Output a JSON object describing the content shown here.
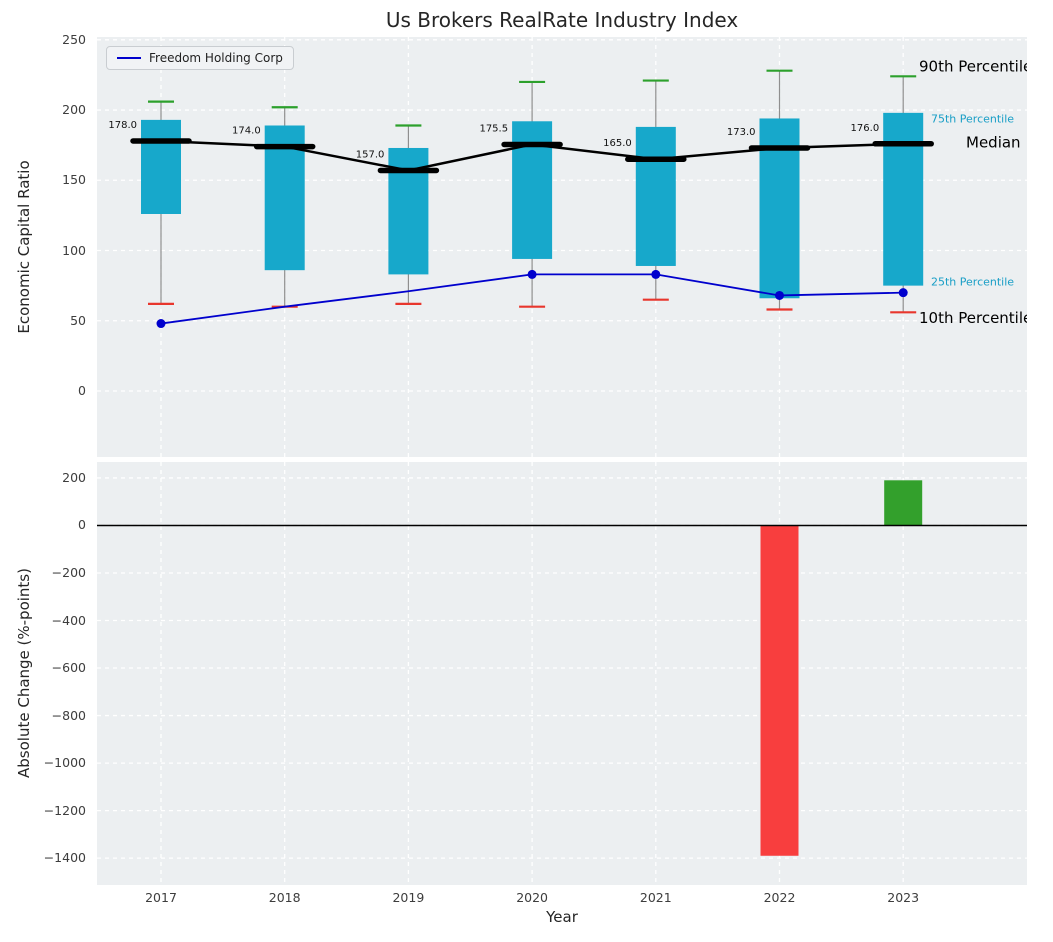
{
  "title": "Us Brokers RealRate Industry Index",
  "xlabel": "Year",
  "background": {
    "plot_bg": "#ECEFF1",
    "grid": "#FFFFFF"
  },
  "chart_data": [
    {
      "type": "boxplot",
      "name": "economic-capital-ratio",
      "ylabel": "Economic Capital Ratio",
      "ylim": [
        -47,
        252
      ],
      "yticks": [
        0,
        50,
        100,
        150,
        200,
        250
      ],
      "categories": [
        "2017",
        "2018",
        "2019",
        "2020",
        "2021",
        "2022",
        "2023"
      ],
      "legend": {
        "label": "Freedom Holding Corp",
        "color": "#0000CD",
        "position": "upper left"
      },
      "boxes": {
        "color": "#17A8CB",
        "p10": [
          62,
          60,
          62,
          60,
          65,
          58,
          56
        ],
        "p25": [
          126,
          86,
          83,
          94,
          89,
          66,
          75
        ],
        "median": [
          178.0,
          174.0,
          157.0,
          175.5,
          165.0,
          173.0,
          176.0
        ],
        "p75": [
          193,
          189,
          173,
          192,
          188,
          194,
          198
        ],
        "p90": [
          206,
          202,
          189,
          220,
          221,
          228,
          224
        ],
        "median_labels": [
          "178.0",
          "174.0",
          "157.0",
          "175.5",
          "165.0",
          "173.0",
          "176.0"
        ]
      },
      "company_series": {
        "name": "Freedom Holding Corp",
        "values": [
          48,
          null,
          null,
          83,
          83,
          68,
          70
        ],
        "line_values": [
          48,
          60,
          71,
          83,
          83,
          68,
          70
        ],
        "color": "#0000CD"
      },
      "annotations": [
        {
          "text": "90th Percentile",
          "y": 231,
          "color": "#000000",
          "size": 15
        },
        {
          "text": "75th Percentile",
          "y": 194,
          "color": "#189EC6",
          "size": 11
        },
        {
          "text": "Median",
          "y": 177,
          "color": "#000000",
          "size": 15
        },
        {
          "text": "25th Percentile",
          "y": 78,
          "color": "#189EC6",
          "size": 11
        },
        {
          "text": "10th Percentile",
          "y": 52,
          "color": "#000000",
          "size": 15
        }
      ],
      "colors": {
        "p10_cap": "#E8362D",
        "p90_cap": "#2CA02C",
        "median_line": "#000000",
        "whisker": "#8f8f8f"
      }
    },
    {
      "type": "bar",
      "name": "absolute-change",
      "ylabel": "Absolute Change (%-points)",
      "ylim": [
        -1513,
        267
      ],
      "yticks": [
        200,
        0,
        -200,
        -400,
        -600,
        -800,
        -1000,
        -1200,
        -1400
      ],
      "categories": [
        "2017",
        "2018",
        "2019",
        "2020",
        "2021",
        "2022",
        "2023"
      ],
      "values": [
        null,
        null,
        null,
        null,
        null,
        -1390,
        190
      ],
      "positive_color": "#33A02C",
      "negative_color": "#F83E3E",
      "zero_line_color": "#000000"
    }
  ]
}
